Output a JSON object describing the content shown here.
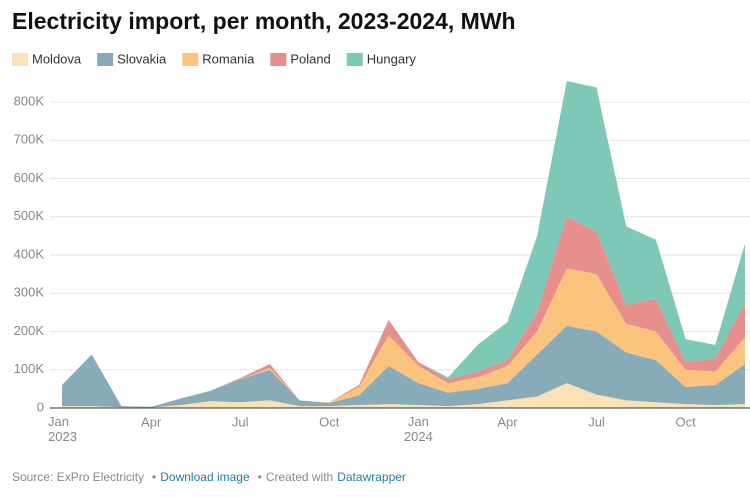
{
  "chart_data": {
    "type": "stacked_area",
    "title": "Electricity import, per month, 2023-2024, MWh",
    "categories": [
      "Jan 2023",
      null,
      null,
      "Apr",
      null,
      null,
      "Jul",
      null,
      null,
      "Oct",
      null,
      null,
      "Jan 2024",
      null,
      null,
      "Apr",
      null,
      null,
      "Jul",
      null,
      null,
      "Oct",
      null,
      null
    ],
    "series": [
      {
        "name": "Moldova",
        "color": "#fbe2b5",
        "values": [
          5000,
          5000,
          2000,
          1000,
          8000,
          18000,
          15000,
          20000,
          5000,
          5000,
          8000,
          10000,
          8000,
          5000,
          10000,
          20000,
          30000,
          65000,
          35000,
          20000,
          15000,
          10000,
          8000,
          10000
        ]
      },
      {
        "name": "Slovakia",
        "color": "#88abba",
        "values": [
          55000,
          135000,
          3000,
          2000,
          17000,
          27000,
          60000,
          80000,
          15000,
          8000,
          25000,
          100000,
          57000,
          35000,
          40000,
          45000,
          110000,
          150000,
          165000,
          125000,
          110000,
          45000,
          52000,
          105000
        ]
      },
      {
        "name": "Romania",
        "color": "#fbc47e",
        "values": [
          0,
          0,
          0,
          0,
          0,
          0,
          0,
          5000,
          0,
          2000,
          22000,
          80000,
          45000,
          25000,
          30000,
          45000,
          60000,
          150000,
          150000,
          75000,
          75000,
          45000,
          35000,
          70000
        ]
      },
      {
        "name": "Poland",
        "color": "#e68f8d",
        "values": [
          0,
          0,
          0,
          0,
          0,
          0,
          3000,
          10000,
          0,
          0,
          5000,
          40000,
          10000,
          10000,
          15000,
          15000,
          50000,
          135000,
          110000,
          50000,
          85000,
          20000,
          35000,
          90000
        ]
      },
      {
        "name": "Hungary",
        "color": "#7ec8b7",
        "values": [
          0,
          0,
          0,
          0,
          0,
          0,
          0,
          0,
          0,
          0,
          0,
          0,
          0,
          5000,
          70000,
          100000,
          200000,
          355000,
          378000,
          205000,
          155000,
          60000,
          35000,
          155000
        ]
      }
    ],
    "ylim": [
      0,
      850000
    ],
    "yticks": [
      0,
      {
        "value": 100000,
        "label": "100K"
      },
      {
        "value": 200000,
        "label": "200K"
      },
      {
        "value": 300000,
        "label": "300K"
      },
      {
        "value": 400000,
        "label": "400K"
      },
      {
        "value": 500000,
        "label": "500K"
      },
      {
        "value": 600000,
        "label": "600K"
      },
      {
        "value": 700000,
        "label": "700K"
      },
      {
        "value": 800000,
        "label": "800K"
      }
    ],
    "grid": true,
    "footer": {
      "source": "Source: ExPro Electricity",
      "download": "Download image",
      "created": "Created with",
      "tool": "Datawrapper"
    }
  }
}
